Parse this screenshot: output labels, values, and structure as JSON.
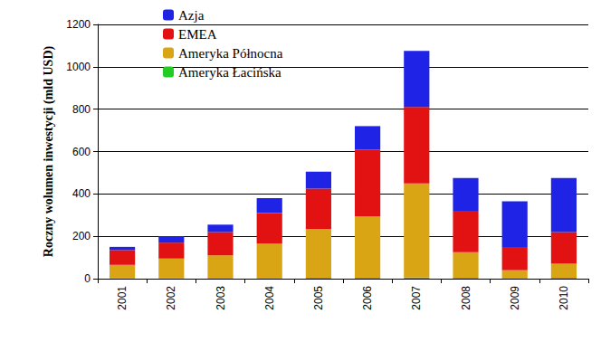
{
  "chart_data": {
    "type": "bar",
    "stacked": true,
    "grid": true,
    "legend": "upper left",
    "y_label": "Roczny wolumen inwestycji (mld USD)",
    "categories": [
      "2001",
      "2002",
      "2003",
      "2004",
      "2005",
      "2006",
      "2007",
      "2008",
      "2009",
      "2010"
    ],
    "series": [
      {
        "name": "Ameryka Łacińska",
        "color": "#22cc22",
        "values": [
          2,
          2,
          3,
          3,
          4,
          4,
          5,
          4,
          3,
          4
        ]
      },
      {
        "name": "Ameryka Północna",
        "color": "#d9a514",
        "values": [
          63,
          93,
          107,
          162,
          231,
          291,
          445,
          121,
          37,
          66
        ]
      },
      {
        "name": "EMEA",
        "color": "#e31212",
        "values": [
          70,
          75,
          110,
          145,
          190,
          315,
          360,
          195,
          110,
          150
        ]
      },
      {
        "name": "Azja",
        "color": "#1f23e6",
        "values": [
          15,
          30,
          35,
          70,
          80,
          110,
          265,
          155,
          215,
          255
        ]
      }
    ],
    "ylim": [
      0,
      1200
    ],
    "yticks": [
      0,
      200,
      400,
      600,
      800,
      1000,
      1200
    ]
  }
}
